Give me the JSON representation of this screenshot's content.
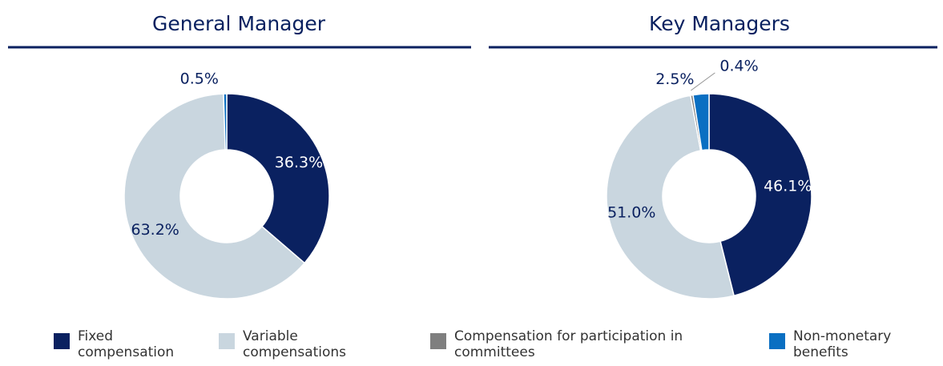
{
  "legend": [
    {
      "name": "Fixed compensation",
      "color": "#0a2160"
    },
    {
      "name": "Variable compensations",
      "color": "#c9d6df"
    },
    {
      "name": "Compensation for participation in committees",
      "color": "#7f7f7f"
    },
    {
      "name": "Non-monetary benefits",
      "color": "#0a6fc2"
    }
  ],
  "chart_data": [
    {
      "type": "pie",
      "title": "General Manager",
      "values": [
        36.3,
        63.2,
        null,
        0.5
      ],
      "value_labels": [
        "36.3%",
        "63.2%",
        null,
        "0.5%"
      ]
    },
    {
      "type": "pie",
      "title": "Key Managers",
      "values": [
        46.1,
        51.0,
        0.4,
        2.5
      ],
      "value_labels": [
        "46.1%",
        "51.0%",
        "0.4%",
        "2.5%"
      ]
    }
  ]
}
